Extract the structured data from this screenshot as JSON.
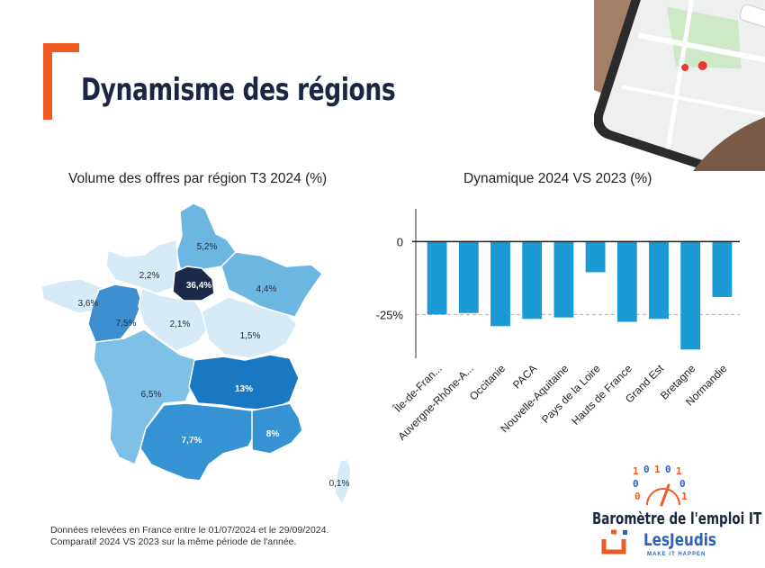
{
  "title": "Dynamisme des régions",
  "map": {
    "subtitle": "Volume des offres par région T3 2024 (%)",
    "regions": [
      {
        "id": "hauts-de-france",
        "value": "5,2%",
        "color": "#6cb6e2"
      },
      {
        "id": "normandie",
        "value": "2,2%",
        "color": "#d7ebf7"
      },
      {
        "id": "ile-de-france",
        "value": "36,4%",
        "color": "#1b2a48"
      },
      {
        "id": "grand-est",
        "value": "4,4%",
        "color": "#6cb6e2"
      },
      {
        "id": "bretagne",
        "value": "3,6%",
        "color": "#d7ebf7"
      },
      {
        "id": "pays-de-la-loire",
        "value": "7,5%",
        "color": "#3d8fd0"
      },
      {
        "id": "centre-val-de-loire",
        "value": "2,1%",
        "color": "#d7ebf7"
      },
      {
        "id": "bourgogne-franche-comte",
        "value": "1,5%",
        "color": "#d7ebf7"
      },
      {
        "id": "nouvelle-aquitaine",
        "value": "6,5%",
        "color": "#7fc0e6"
      },
      {
        "id": "auvergne-rhone-alpes",
        "value": "13%",
        "color": "#1a78c2"
      },
      {
        "id": "occitanie",
        "value": "7,7%",
        "color": "#3593d4"
      },
      {
        "id": "paca",
        "value": "8%",
        "color": "#3593d4"
      },
      {
        "id": "corse",
        "value": "0,1%",
        "color": "#d7ebf7"
      }
    ]
  },
  "chart_data": {
    "type": "bar",
    "title": "Dynamique  2024 VS 2023 (%)",
    "categories": [
      "Île-de-Fran...",
      "Auvergne-Rhône-A...",
      "Occitanie",
      "PACA",
      "Nouvelle-Aquitaine",
      "Pays de la Loire",
      "Hauts de France",
      "Grand Est",
      "Bretagne",
      "Normandie"
    ],
    "values": [
      -25,
      -24.5,
      -29,
      -26.5,
      -26,
      -10.5,
      -27.5,
      -26.5,
      -37,
      -19
    ],
    "ylim": [
      -40,
      10
    ],
    "yticks": [
      0,
      -25
    ],
    "yticklabels": [
      "0",
      "-25%"
    ],
    "reference_line": -25,
    "color": "#1b9ad6"
  },
  "footnote": {
    "line1": "Données relevées en France entre le 01/07/2024 et le 29/09/2024.",
    "line2": "Comparatif 2024 VS 2023 sur la même période de l'année."
  },
  "branding": {
    "barometer": "Baromètre de l'emploi IT",
    "brand": "LesJeudis",
    "tagline": "MAKE IT HAPPEN",
    "accent_color": "#f05a22"
  }
}
